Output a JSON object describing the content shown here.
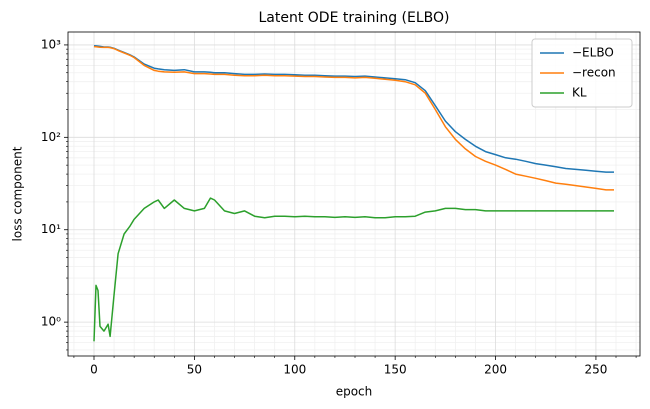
{
  "chart_data": {
    "type": "line",
    "title": "Latent ODE training (ELBO)",
    "x_label": "epoch",
    "y_label": "loss component",
    "x": [
      0,
      1,
      2,
      3,
      5,
      7,
      8,
      10,
      12,
      15,
      18,
      20,
      25,
      30,
      32,
      35,
      40,
      45,
      50,
      55,
      58,
      60,
      65,
      70,
      75,
      80,
      85,
      90,
      95,
      100,
      105,
      110,
      115,
      120,
      125,
      130,
      135,
      140,
      145,
      150,
      155,
      160,
      165,
      170,
      175,
      180,
      185,
      190,
      195,
      200,
      205,
      210,
      215,
      220,
      225,
      230,
      235,
      240,
      245,
      250,
      255,
      259
    ],
    "series": [
      {
        "name": "−ELBO",
        "color": "#1f77b4",
        "values": [
          980,
          975,
          970,
          965,
          950,
          950,
          945,
          920,
          880,
          830,
          780,
          740,
          620,
          560,
          550,
          540,
          530,
          540,
          510,
          510,
          505,
          500,
          500,
          490,
          480,
          480,
          485,
          480,
          480,
          475,
          470,
          470,
          465,
          460,
          460,
          455,
          460,
          450,
          440,
          430,
          420,
          390,
          320,
          220,
          150,
          115,
          95,
          80,
          70,
          65,
          60,
          58,
          55,
          52,
          50,
          48,
          46,
          45,
          44,
          43,
          42,
          42
        ]
      },
      {
        "name": "−recon",
        "color": "#ff7f0e",
        "values": [
          960,
          955,
          950,
          945,
          940,
          940,
          935,
          910,
          870,
          820,
          770,
          730,
          600,
          530,
          520,
          510,
          505,
          510,
          490,
          490,
          485,
          480,
          480,
          470,
          465,
          465,
          470,
          465,
          465,
          460,
          455,
          455,
          450,
          445,
          445,
          440,
          445,
          435,
          425,
          415,
          400,
          370,
          300,
          200,
          130,
          95,
          75,
          62,
          55,
          50,
          45,
          40,
          38,
          36,
          34,
          32,
          31,
          30,
          29,
          28,
          27,
          27
        ]
      },
      {
        "name": "KL",
        "color": "#2ca02c",
        "values": [
          0.62,
          2.5,
          2.2,
          0.9,
          0.8,
          0.95,
          0.7,
          2.0,
          5.5,
          9,
          11,
          13,
          17,
          20,
          21,
          17,
          21,
          17,
          16,
          17,
          22,
          21,
          16,
          15,
          16,
          14,
          13.5,
          14,
          14,
          13.8,
          14,
          13.8,
          13.8,
          13.6,
          13.8,
          13.6,
          13.8,
          13.5,
          13.5,
          13.8,
          13.8,
          14,
          15.5,
          16,
          17,
          17,
          16.5,
          16.5,
          16,
          16,
          16,
          16,
          16,
          16,
          16,
          16,
          16,
          16,
          16,
          16,
          16,
          16
        ]
      }
    ],
    "xlim": [
      -12.95,
      271.95
    ],
    "xticks": [
      0,
      50,
      100,
      150,
      200,
      250
    ],
    "xminorticks": [
      -10,
      10,
      20,
      30,
      40,
      60,
      70,
      80,
      90,
      110,
      120,
      130,
      140,
      160,
      170,
      180,
      190,
      210,
      220,
      230,
      240,
      260,
      270
    ],
    "ylim": [
      0.43,
      1380
    ],
    "log_y": true,
    "yticks": [
      {
        "value": 1,
        "label": "10⁰"
      },
      {
        "value": 10,
        "label": "10¹"
      },
      {
        "value": 100,
        "label": "10²"
      },
      {
        "value": 1000,
        "label": "10³"
      }
    ],
    "yminorticks": [
      0.5,
      0.6,
      0.7,
      0.8,
      0.9,
      2,
      3,
      4,
      5,
      6,
      7,
      8,
      9,
      20,
      30,
      40,
      50,
      60,
      70,
      80,
      90,
      200,
      300,
      400,
      500,
      600,
      700,
      800,
      900
    ],
    "grid": true,
    "legend": "upper right"
  }
}
